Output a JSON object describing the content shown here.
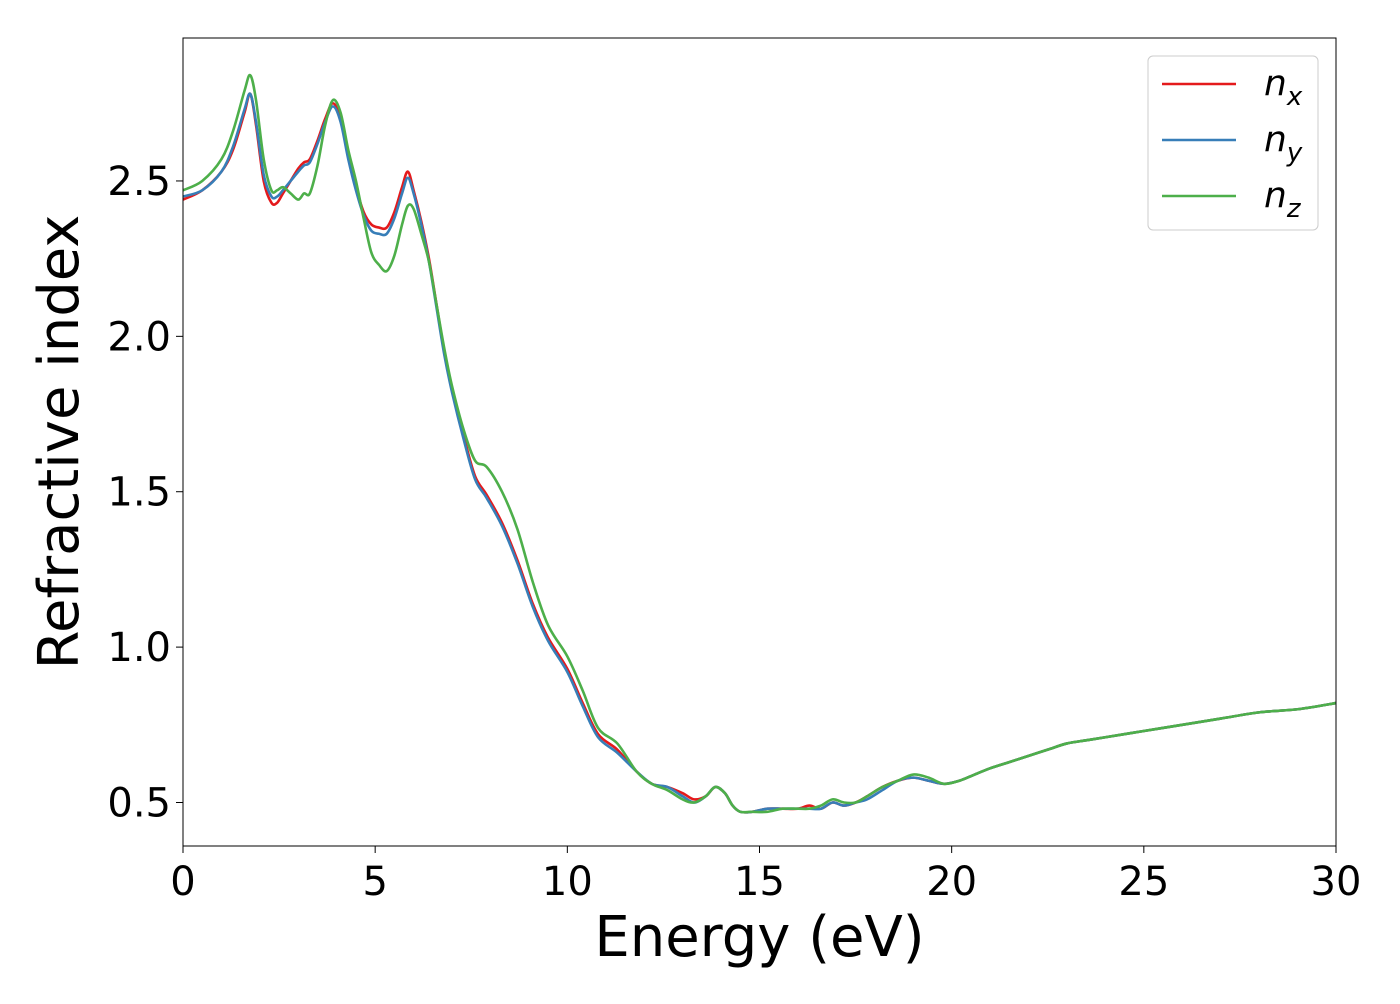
{
  "chart_data": {
    "type": "line",
    "title": "",
    "xlabel": "Energy (eV)",
    "ylabel": "Refractive index",
    "xlim": [
      0,
      30
    ],
    "ylim": [
      0.36,
      2.96
    ],
    "xticks": [
      0,
      5,
      10,
      15,
      20,
      25,
      30
    ],
    "yticks": [
      0.5,
      1.0,
      1.5,
      2.0,
      2.5
    ],
    "xtick_labels": [
      "0",
      "5",
      "10",
      "15",
      "20",
      "25",
      "30"
    ],
    "ytick_labels": [
      "0.5",
      "1.0",
      "1.5",
      "2.0",
      "2.5"
    ],
    "grid": false,
    "legend": {
      "position": "top-right",
      "entries": [
        {
          "base": "n",
          "sub": "x",
          "color": "#e41a1c"
        },
        {
          "base": "n",
          "sub": "y",
          "color": "#377eb8"
        },
        {
          "base": "n",
          "sub": "z",
          "color": "#4daf4a"
        }
      ]
    },
    "series": [
      {
        "name": "n_x",
        "color": "#e41a1c",
        "x": [
          0,
          0.5,
          1.0,
          1.3,
          1.6,
          1.75,
          1.9,
          2.1,
          2.3,
          2.45,
          2.6,
          2.8,
          3.0,
          3.15,
          3.3,
          3.5,
          3.7,
          3.9,
          4.1,
          4.3,
          4.5,
          4.7,
          4.9,
          5.1,
          5.3,
          5.5,
          5.7,
          5.85,
          6.0,
          6.2,
          6.4,
          6.6,
          6.8,
          7.0,
          7.3,
          7.6,
          7.9,
          8.3,
          8.7,
          9.1,
          9.5,
          10.0,
          10.4,
          10.8,
          11.3,
          11.8,
          12.2,
          12.6,
          13.0,
          13.3,
          13.6,
          13.85,
          14.1,
          14.3,
          14.5,
          14.8,
          15.2,
          15.6,
          16.0,
          16.3,
          16.6,
          16.9,
          17.2,
          17.5,
          17.8,
          18.2,
          18.6,
          19.0,
          19.4,
          19.8,
          20.2,
          20.6,
          21.0,
          21.5,
          22.0,
          22.5,
          23.0,
          23.5,
          24.0,
          25.0,
          26.0,
          27.0,
          28.0,
          29.0,
          30.0
        ],
        "y": [
          2.44,
          2.47,
          2.53,
          2.6,
          2.72,
          2.78,
          2.68,
          2.5,
          2.43,
          2.43,
          2.46,
          2.5,
          2.54,
          2.56,
          2.57,
          2.63,
          2.7,
          2.75,
          2.7,
          2.58,
          2.48,
          2.4,
          2.36,
          2.35,
          2.35,
          2.4,
          2.48,
          2.53,
          2.47,
          2.37,
          2.25,
          2.1,
          1.95,
          1.83,
          1.68,
          1.55,
          1.49,
          1.4,
          1.28,
          1.14,
          1.03,
          0.93,
          0.82,
          0.72,
          0.67,
          0.6,
          0.56,
          0.55,
          0.53,
          0.51,
          0.52,
          0.55,
          0.53,
          0.49,
          0.47,
          0.47,
          0.48,
          0.48,
          0.48,
          0.49,
          0.48,
          0.5,
          0.49,
          0.5,
          0.52,
          0.55,
          0.57,
          0.58,
          0.57,
          0.56,
          0.57,
          0.59,
          0.61,
          0.63,
          0.65,
          0.67,
          0.69,
          0.7,
          0.71,
          0.73,
          0.75,
          0.77,
          0.79,
          0.8,
          0.82
        ]
      },
      {
        "name": "n_y",
        "color": "#377eb8",
        "x": [
          0,
          0.5,
          1.0,
          1.3,
          1.6,
          1.75,
          1.9,
          2.1,
          2.3,
          2.45,
          2.6,
          2.8,
          3.0,
          3.15,
          3.3,
          3.5,
          3.7,
          3.9,
          4.1,
          4.3,
          4.5,
          4.7,
          4.9,
          5.1,
          5.3,
          5.5,
          5.7,
          5.85,
          6.0,
          6.2,
          6.4,
          6.6,
          6.8,
          7.0,
          7.3,
          7.6,
          7.9,
          8.3,
          8.7,
          9.1,
          9.5,
          10.0,
          10.4,
          10.8,
          11.3,
          11.8,
          12.2,
          12.6,
          13.0,
          13.3,
          13.6,
          13.85,
          14.1,
          14.3,
          14.5,
          14.8,
          15.2,
          15.6,
          16.0,
          16.3,
          16.6,
          16.9,
          17.2,
          17.5,
          17.8,
          18.2,
          18.6,
          19.0,
          19.4,
          19.8,
          20.2,
          20.6,
          21.0,
          21.5,
          22.0,
          22.5,
          23.0,
          23.5,
          24.0,
          25.0,
          26.0,
          27.0,
          28.0,
          29.0,
          30.0
        ],
        "y": [
          2.45,
          2.47,
          2.53,
          2.61,
          2.73,
          2.78,
          2.69,
          2.52,
          2.45,
          2.45,
          2.47,
          2.5,
          2.53,
          2.55,
          2.56,
          2.62,
          2.69,
          2.74,
          2.69,
          2.57,
          2.47,
          2.39,
          2.34,
          2.33,
          2.33,
          2.38,
          2.46,
          2.51,
          2.46,
          2.36,
          2.24,
          2.09,
          1.94,
          1.82,
          1.67,
          1.54,
          1.48,
          1.39,
          1.27,
          1.13,
          1.02,
          0.92,
          0.81,
          0.71,
          0.66,
          0.6,
          0.56,
          0.55,
          0.52,
          0.5,
          0.52,
          0.55,
          0.53,
          0.49,
          0.47,
          0.47,
          0.48,
          0.48,
          0.48,
          0.48,
          0.48,
          0.5,
          0.49,
          0.5,
          0.51,
          0.54,
          0.57,
          0.58,
          0.57,
          0.56,
          0.57,
          0.59,
          0.61,
          0.63,
          0.65,
          0.67,
          0.69,
          0.7,
          0.71,
          0.73,
          0.75,
          0.77,
          0.79,
          0.8,
          0.82
        ]
      },
      {
        "name": "n_z",
        "color": "#4daf4a",
        "x": [
          0,
          0.5,
          1.0,
          1.3,
          1.6,
          1.75,
          1.9,
          2.1,
          2.3,
          2.45,
          2.6,
          2.8,
          3.0,
          3.15,
          3.3,
          3.5,
          3.7,
          3.9,
          4.1,
          4.3,
          4.5,
          4.7,
          4.9,
          5.1,
          5.3,
          5.5,
          5.7,
          5.85,
          6.0,
          6.2,
          6.4,
          6.6,
          6.8,
          7.0,
          7.3,
          7.6,
          7.9,
          8.3,
          8.7,
          9.1,
          9.5,
          10.0,
          10.4,
          10.8,
          11.3,
          11.8,
          12.2,
          12.6,
          13.0,
          13.3,
          13.6,
          13.85,
          14.1,
          14.3,
          14.5,
          14.8,
          15.2,
          15.6,
          16.0,
          16.3,
          16.6,
          16.9,
          17.2,
          17.5,
          17.8,
          18.2,
          18.6,
          19.0,
          19.4,
          19.8,
          20.2,
          20.6,
          21.0,
          21.5,
          22.0,
          22.5,
          23.0,
          23.5,
          24.0,
          25.0,
          26.0,
          27.0,
          28.0,
          29.0,
          30.0
        ],
        "y": [
          2.47,
          2.5,
          2.57,
          2.66,
          2.79,
          2.84,
          2.76,
          2.57,
          2.47,
          2.47,
          2.48,
          2.46,
          2.44,
          2.46,
          2.46,
          2.55,
          2.68,
          2.76,
          2.72,
          2.6,
          2.5,
          2.38,
          2.27,
          2.23,
          2.21,
          2.26,
          2.36,
          2.42,
          2.41,
          2.33,
          2.24,
          2.1,
          1.96,
          1.84,
          1.7,
          1.6,
          1.58,
          1.5,
          1.38,
          1.21,
          1.07,
          0.97,
          0.86,
          0.74,
          0.69,
          0.6,
          0.56,
          0.54,
          0.51,
          0.5,
          0.52,
          0.55,
          0.53,
          0.49,
          0.47,
          0.47,
          0.47,
          0.48,
          0.48,
          0.48,
          0.49,
          0.51,
          0.5,
          0.5,
          0.52,
          0.55,
          0.57,
          0.59,
          0.58,
          0.56,
          0.57,
          0.59,
          0.61,
          0.63,
          0.65,
          0.67,
          0.69,
          0.7,
          0.71,
          0.73,
          0.75,
          0.77,
          0.79,
          0.8,
          0.82
        ]
      }
    ]
  }
}
